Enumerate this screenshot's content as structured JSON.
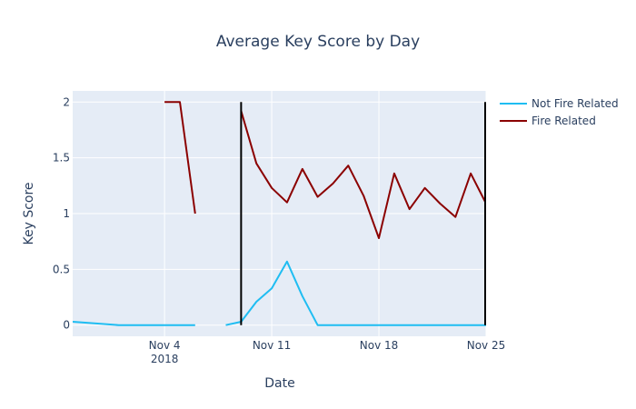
{
  "chart_data": {
    "type": "line",
    "title": "Average Key Score by Day",
    "xlabel": "Date",
    "ylabel": "Key Score",
    "xlim": [
      "2018-10-29",
      "2018-11-25"
    ],
    "ylim": [
      -0.1,
      2.1
    ],
    "grid": true,
    "legend_position": "top-right",
    "x_ticks": [
      {
        "date": "2018-11-04",
        "label": "Nov 4",
        "sublabel": "2018"
      },
      {
        "date": "2018-11-11",
        "label": "Nov 11",
        "sublabel": ""
      },
      {
        "date": "2018-11-18",
        "label": "Nov 18",
        "sublabel": ""
      },
      {
        "date": "2018-11-25",
        "label": "Nov 25",
        "sublabel": ""
      }
    ],
    "y_ticks": [
      {
        "value": 0,
        "label": "0"
      },
      {
        "value": 0.5,
        "label": "0.5"
      },
      {
        "value": 1,
        "label": "1"
      },
      {
        "value": 1.5,
        "label": "1.5"
      },
      {
        "value": 2,
        "label": "2"
      }
    ],
    "series": [
      {
        "name": "Not Fire Related",
        "color": "#1fbdf2",
        "points": [
          {
            "x": "2018-10-29",
            "y": 0.03
          },
          {
            "x": "2018-11-01",
            "y": 0
          },
          {
            "x": "2018-11-02",
            "y": 0
          },
          {
            "x": "2018-11-03",
            "y": 0
          },
          {
            "x": "2018-11-04",
            "y": 0
          },
          {
            "x": "2018-11-05",
            "y": 0
          },
          {
            "x": "2018-11-06",
            "y": 0
          },
          {
            "x": "2018-11-07",
            "y": null
          },
          {
            "x": "2018-11-08",
            "y": 0
          },
          {
            "x": "2018-11-09",
            "y": 0.03
          },
          {
            "x": "2018-11-10",
            "y": 0.21
          },
          {
            "x": "2018-11-11",
            "y": 0.33
          },
          {
            "x": "2018-11-12",
            "y": 0.57
          },
          {
            "x": "2018-11-13",
            "y": 0.26
          },
          {
            "x": "2018-11-14",
            "y": 0
          },
          {
            "x": "2018-11-15",
            "y": 0
          },
          {
            "x": "2018-11-16",
            "y": 0
          },
          {
            "x": "2018-11-17",
            "y": 0
          },
          {
            "x": "2018-11-18",
            "y": 0
          },
          {
            "x": "2018-11-19",
            "y": 0
          },
          {
            "x": "2018-11-20",
            "y": 0
          },
          {
            "x": "2018-11-21",
            "y": 0
          },
          {
            "x": "2018-11-22",
            "y": 0
          },
          {
            "x": "2018-11-23",
            "y": 0
          },
          {
            "x": "2018-11-24",
            "y": 0
          },
          {
            "x": "2018-11-25",
            "y": 0
          }
        ]
      },
      {
        "name": "Fire Related",
        "color": "#8b0000",
        "points": [
          {
            "x": "2018-11-04",
            "y": 2
          },
          {
            "x": "2018-11-05",
            "y": 2
          },
          {
            "x": "2018-11-06",
            "y": 1
          },
          {
            "x": "2018-11-07",
            "y": null
          },
          {
            "x": "2018-11-09",
            "y": 1.92
          },
          {
            "x": "2018-11-10",
            "y": 1.45
          },
          {
            "x": "2018-11-11",
            "y": 1.23
          },
          {
            "x": "2018-11-12",
            "y": 1.1
          },
          {
            "x": "2018-11-13",
            "y": 1.4
          },
          {
            "x": "2018-11-14",
            "y": 1.15
          },
          {
            "x": "2018-11-15",
            "y": 1.27
          },
          {
            "x": "2018-11-16",
            "y": 1.43
          },
          {
            "x": "2018-11-17",
            "y": 1.16
          },
          {
            "x": "2018-11-18",
            "y": 0.78
          },
          {
            "x": "2018-11-19",
            "y": 1.36
          },
          {
            "x": "2018-11-20",
            "y": 1.04
          },
          {
            "x": "2018-11-21",
            "y": 1.23
          },
          {
            "x": "2018-11-22",
            "y": 1.09
          },
          {
            "x": "2018-11-23",
            "y": 0.97
          },
          {
            "x": "2018-11-24",
            "y": 1.36
          },
          {
            "x": "2018-11-25",
            "y": 1.09
          },
          {
            "x": "2018-11-26",
            "y": 1
          }
        ]
      }
    ],
    "vertical_lines": [
      {
        "x": "2018-11-09",
        "y0": 0,
        "y1": 2,
        "color": "#000000"
      },
      {
        "x": "2018-11-26",
        "y0": 0,
        "y1": 2,
        "color": "#000000"
      }
    ],
    "plot_bg": "#e5ecf6",
    "grid_color": "#ffffff"
  }
}
